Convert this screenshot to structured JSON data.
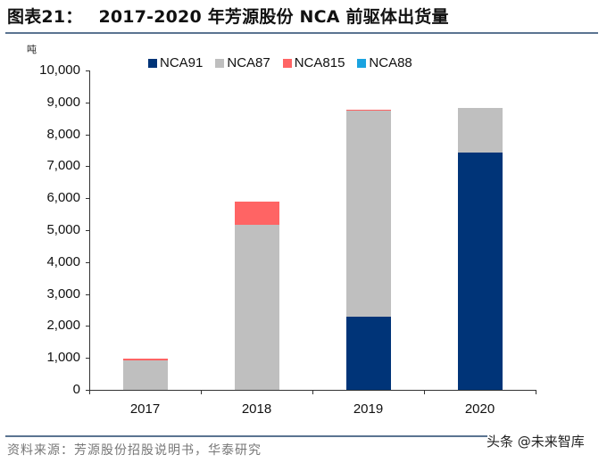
{
  "title": {
    "figure_label": "图表21：",
    "text": "2017-2020 年芳源股份 NCA 前驱体出货量"
  },
  "unit": "吨",
  "legend": [
    {
      "name": "NCA91",
      "color": "#003478"
    },
    {
      "name": "NCA87",
      "color": "#bfbfbf"
    },
    {
      "name": "NCA815",
      "color": "#ff6464"
    },
    {
      "name": "NCA88",
      "color": "#1aa3e0"
    }
  ],
  "y_ticks": [
    "10,000",
    "9,000",
    "8,000",
    "7,000",
    "6,000",
    "5,000",
    "4,000",
    "3,000",
    "2,000",
    "1,000",
    "0"
  ],
  "x_labels": [
    "2017",
    "2018",
    "2019",
    "2020"
  ],
  "source": "资料来源：芳源股份招股说明书，华泰研究",
  "watermark": "头条 @未来智库",
  "chart_data": {
    "type": "bar",
    "stacked": true,
    "title": "2017-2020 年芳源股份 NCA 前驱体出货量",
    "xlabel": "",
    "ylabel": "吨",
    "ylim": [
      0,
      10000
    ],
    "categories": [
      "2017",
      "2018",
      "2019",
      "2020"
    ],
    "series": [
      {
        "name": "NCA91",
        "color": "#003478",
        "values": [
          0,
          0,
          2300,
          7430
        ]
      },
      {
        "name": "NCA87",
        "color": "#bfbfbf",
        "values": [
          920,
          5170,
          6440,
          1400
        ]
      },
      {
        "name": "NCA815",
        "color": "#ff6464",
        "values": [
          50,
          720,
          40,
          0
        ]
      },
      {
        "name": "NCA88",
        "color": "#1aa3e0",
        "values": [
          0,
          0,
          0,
          0
        ]
      }
    ],
    "legend_position": "top",
    "grid": false
  }
}
